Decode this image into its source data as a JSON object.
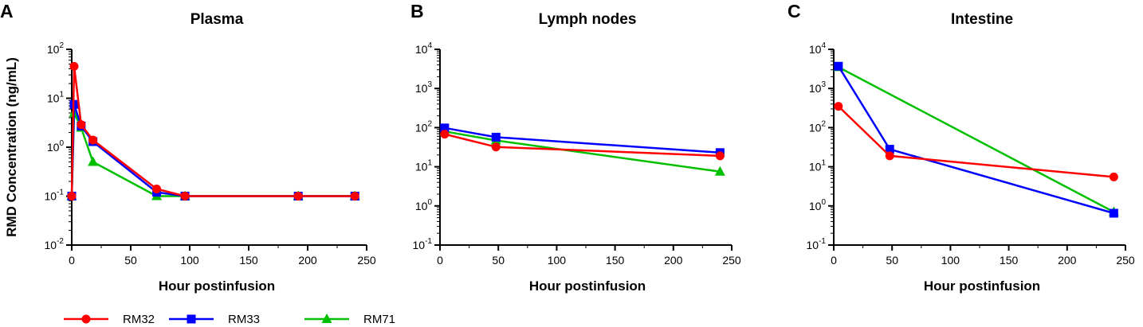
{
  "colors": {
    "RM32": "#ff0000",
    "RM33": "#0000ff",
    "RM71": "#00c000"
  },
  "legend": [
    {
      "name": "RM32",
      "marker": "circle",
      "color": "#ff0000"
    },
    {
      "name": "RM33",
      "marker": "square",
      "color": "#0000ff"
    },
    {
      "name": "RM71",
      "marker": "triangle",
      "color": "#00c000"
    }
  ],
  "chart_data": [
    {
      "type": "line",
      "panel": "A",
      "title": "Plasma",
      "xlabel": "Hour postinfusion",
      "ylabel": "RMD Concentration (ng/mL)",
      "xlim": [
        0,
        250
      ],
      "ylim": [
        0.01,
        100
      ],
      "yscale": "log",
      "xticks": [
        "0",
        "50",
        "100",
        "150",
        "200",
        "250"
      ],
      "yticks": [
        {
          "base": "10",
          "exp": "-2"
        },
        {
          "base": "10",
          "exp": "-1"
        },
        {
          "base": "10",
          "exp": "0"
        },
        {
          "base": "10",
          "exp": "1"
        },
        {
          "base": "10",
          "exp": "2"
        }
      ],
      "series": [
        {
          "name": "RM32",
          "x": [
            0,
            2,
            8,
            18,
            72,
            96,
            192,
            240
          ],
          "y": [
            0.1,
            45,
            2.9,
            1.4,
            0.14,
            0.1,
            0.1,
            0.1
          ]
        },
        {
          "name": "RM33",
          "x": [
            0,
            2,
            8,
            18,
            72,
            96,
            192,
            240
          ],
          "y": [
            0.1,
            7.5,
            2.7,
            1.3,
            0.12,
            0.1,
            0.1,
            0.1
          ]
        },
        {
          "name": "RM71",
          "x": [
            0,
            2,
            8,
            18,
            72,
            96,
            192,
            240
          ],
          "y": [
            0.1,
            5,
            2.5,
            0.5,
            0.1,
            0.1,
            0.1,
            0.1
          ]
        }
      ]
    },
    {
      "type": "line",
      "panel": "B",
      "title": "Lymph nodes",
      "xlabel": "Hour postinfusion",
      "ylabel": "",
      "xlim": [
        0,
        250
      ],
      "ylim": [
        0.1,
        10000
      ],
      "yscale": "log",
      "xticks": [
        "0",
        "50",
        "100",
        "150",
        "200",
        "250"
      ],
      "yticks": [
        {
          "base": "10",
          "exp": "-1"
        },
        {
          "base": "10",
          "exp": "0"
        },
        {
          "base": "10",
          "exp": "1"
        },
        {
          "base": "10",
          "exp": "2"
        },
        {
          "base": "10",
          "exp": "3"
        },
        {
          "base": "10",
          "exp": "4"
        }
      ],
      "series": [
        {
          "name": "RM32",
          "x": [
            4,
            48,
            240
          ],
          "y": [
            68,
            32,
            19
          ]
        },
        {
          "name": "RM33",
          "x": [
            4,
            48,
            240
          ],
          "y": [
            98,
            57,
            23
          ]
        },
        {
          "name": "RM71",
          "x": [
            4,
            48,
            240
          ],
          "y": [
            80,
            47,
            7.5
          ]
        }
      ]
    },
    {
      "type": "line",
      "panel": "C",
      "title": "Intestine",
      "xlabel": "Hour postinfusion",
      "ylabel": "",
      "xlim": [
        0,
        250
      ],
      "ylim": [
        0.1,
        10000
      ],
      "yscale": "log",
      "xticks": [
        "0",
        "50",
        "100",
        "150",
        "200",
        "250"
      ],
      "yticks": [
        {
          "base": "10",
          "exp": "-1"
        },
        {
          "base": "10",
          "exp": "0"
        },
        {
          "base": "10",
          "exp": "1"
        },
        {
          "base": "10",
          "exp": "2"
        },
        {
          "base": "10",
          "exp": "3"
        },
        {
          "base": "10",
          "exp": "4"
        }
      ],
      "series": [
        {
          "name": "RM32",
          "x": [
            4,
            48,
            240
          ],
          "y": [
            350,
            19,
            5.5
          ]
        },
        {
          "name": "RM33",
          "x": [
            4,
            48,
            240
          ],
          "y": [
            3700,
            28,
            0.65
          ]
        },
        {
          "name": "RM71",
          "x": [
            4,
            240
          ],
          "y": [
            3500,
            0.7
          ]
        }
      ]
    }
  ]
}
